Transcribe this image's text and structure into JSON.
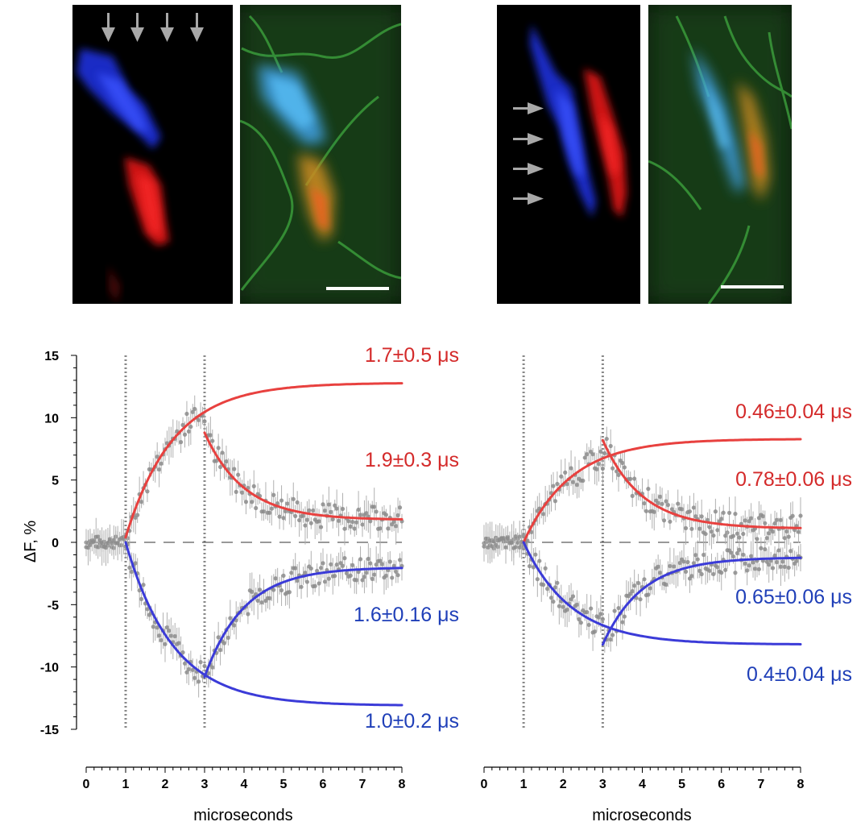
{
  "micrographs": [
    {
      "panel": "left",
      "arrows": 4,
      "arrow_direction": "down",
      "channels": [
        "blue",
        "red",
        "merged"
      ],
      "has_scale_bar": true
    },
    {
      "panel": "right",
      "arrows": 4,
      "arrow_direction": "right",
      "channels": [
        "blue",
        "red",
        "merged"
      ],
      "has_scale_bar": true
    }
  ],
  "colors": {
    "red": "#e8413f",
    "red_label": "#d42a2a",
    "blue": "#3b3bd8",
    "blue_label": "#1f3fb8",
    "points": "#8c8c8c"
  },
  "chart_data": [
    {
      "type": "scatter",
      "panel": "left",
      "xlabel": "microseconds",
      "ylabel": "ΔF, %",
      "xlim": [
        0,
        8
      ],
      "ylim": [
        -15,
        15
      ],
      "x_ticks": [
        0,
        1,
        2,
        3,
        4,
        5,
        6,
        7,
        8
      ],
      "y_ticks": [
        15,
        10,
        5,
        0,
        -5,
        -10,
        -15
      ],
      "vlines": [
        1,
        3
      ],
      "hline": 0,
      "series": [
        {
          "color": "red",
          "x": [
            0,
            0.5,
            1,
            1.5,
            2,
            2.5,
            3,
            3.5,
            4,
            5,
            6,
            7,
            8
          ],
          "y": [
            0,
            0,
            0,
            4.5,
            6.5,
            8.5,
            10,
            7.5,
            5,
            3,
            3,
            2,
            2
          ]
        },
        {
          "color": "blue",
          "x": [
            0,
            0.5,
            1,
            1.5,
            2,
            2.5,
            3,
            3.5,
            4,
            5,
            6,
            7,
            8
          ],
          "y": [
            0,
            0,
            0,
            -5.5,
            -8.5,
            -10.5,
            -11.5,
            -8,
            -6,
            -4,
            -2.5,
            -2,
            -1.8
          ]
        }
      ],
      "fits": [
        {
          "color": "red",
          "label": "1.7±0.5 μs",
          "t0": 1,
          "t1": 8,
          "y_start": 0.4,
          "y_end": 12.8
        },
        {
          "color": "red",
          "label": "1.9±0.3 μs",
          "t0": 3,
          "t1": 8,
          "y_start": 8.8,
          "y_end": 1.8
        },
        {
          "color": "blue",
          "label": "1.6±0.16 μs",
          "t0": 3,
          "t1": 8,
          "y_start": -10.8,
          "y_end": -2
        },
        {
          "color": "blue",
          "label": "1.0±0.2 μs",
          "t0": 1,
          "t1": 8,
          "y_start": 0,
          "y_end": -13.1
        }
      ]
    },
    {
      "type": "scatter",
      "panel": "right",
      "xlabel": "microseconds",
      "ylabel": "",
      "xlim": [
        0,
        8
      ],
      "ylim": [
        -15,
        15
      ],
      "x_ticks": [
        0,
        1,
        2,
        3,
        4,
        5,
        6,
        7,
        8
      ],
      "vlines": [
        1,
        3
      ],
      "hline": 0,
      "series": [
        {
          "color": "red",
          "x": [
            0,
            0.5,
            1,
            1.5,
            2,
            2.5,
            3,
            3.5,
            4,
            5,
            6,
            7,
            8
          ],
          "y": [
            0,
            0,
            0,
            5.5,
            7.5,
            8,
            9,
            5,
            3,
            2,
            1.5,
            1,
            1
          ]
        },
        {
          "color": "blue",
          "x": [
            0,
            0.5,
            1,
            1.5,
            2,
            2.5,
            3,
            3.5,
            4,
            5,
            6,
            7,
            8
          ],
          "y": [
            0,
            0,
            0,
            -5,
            -7.5,
            -8,
            -9,
            -4,
            -2.5,
            -1.5,
            -1.2,
            -1,
            -1
          ]
        }
      ],
      "fits": [
        {
          "color": "red",
          "label": "0.46±0.04 μs",
          "t0": 1,
          "t1": 8,
          "y_start": 0,
          "y_end": 8.3
        },
        {
          "color": "red",
          "label": "0.78±0.06 μs",
          "t0": 3,
          "t1": 8,
          "y_start": 8.2,
          "y_end": 1.1
        },
        {
          "color": "blue",
          "label": "0.65±0.06 μs",
          "t0": 3,
          "t1": 8,
          "y_start": -8.2,
          "y_end": -1.2
        },
        {
          "color": "blue",
          "label": "0.4±0.04 μs",
          "t0": 1,
          "t1": 8,
          "y_start": 0,
          "y_end": -8.2
        }
      ]
    }
  ]
}
